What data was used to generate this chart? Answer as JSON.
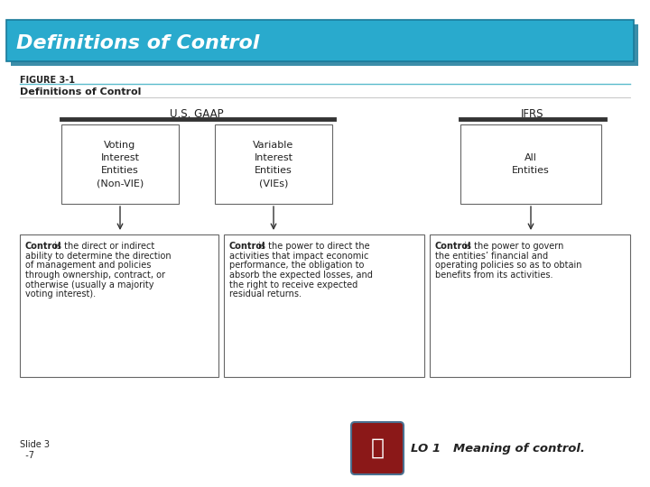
{
  "title": "Definitions of Control",
  "title_bg_color": "#29AACD",
  "title_shadow_color": "#1a7a9a",
  "figure_label": "FIGURE 3-1",
  "figure_subtitle": "Definitions of Control",
  "gaap_label": "U.S. GAAP",
  "ifrs_label": "IFRS",
  "box1_text": "Voting\nInterest\nEntities\n(Non-VIE)",
  "box2_text": "Variable\nInterest\nEntities\n(VIEs)",
  "box3_text": "All\nEntities",
  "def1_lines": [
    "Control is the direct or indirect",
    "ability to determine the direction",
    "of management and policies",
    "through ownership, contract, or",
    "otherwise (usually a majority",
    "voting interest)."
  ],
  "def2_lines": [
    "Control is the power to direct the",
    "activities that impact economic",
    "performance, the obligation to",
    "absorb the expected losses, and",
    "the right to receive expected",
    "residual returns."
  ],
  "def3_lines": [
    "Control is the power to govern",
    "the entities’ financial and",
    "operating policies so as to obtain",
    "benefits from its activities."
  ],
  "slide_line1": "Slide 3",
  "slide_line2": "  -7",
  "lo_text": "LO 1   Meaning of control.",
  "bg_color": "#ffffff",
  "box_edge_color": "#666666",
  "text_color": "#222222",
  "teal_line_color": "#5bbccc",
  "dark_bar_color": "#333333"
}
